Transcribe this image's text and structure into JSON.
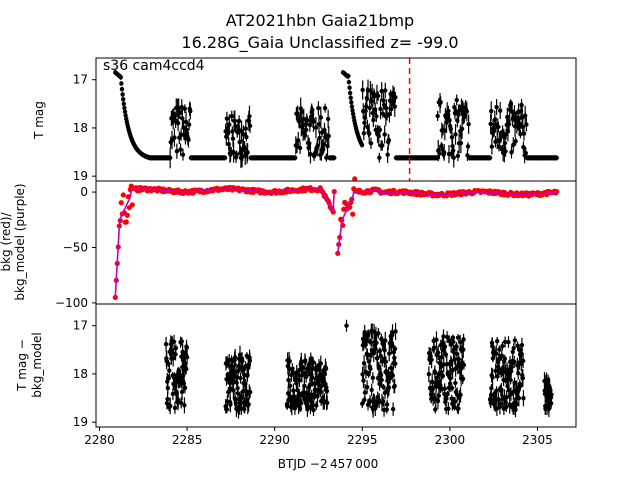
{
  "chart_data": [
    {
      "type": "scatter",
      "title": "AT2021hbn  Gaia21bmp",
      "subtitle": "16.28G_Gaia Unclassified z= -99.0",
      "annotation": "s36 cam4ccd4",
      "ylabel": "T mag",
      "ylim": [
        19.1,
        16.55
      ],
      "y_inverted": true,
      "yticks": [
        17,
        18,
        19
      ],
      "xlim": [
        2279.8,
        2307.2
      ],
      "marker_color": "#000000",
      "vertical_marker": {
        "x": 2297.7,
        "color": "#ff0000",
        "style": "dashed"
      },
      "segments": [
        {
          "x_start": 2280.9,
          "x_end": 2293.4,
          "shape": "flux-T",
          "bursts": [
            [
              2284.0,
              2285.2,
              17.3
            ],
            [
              2287.2,
              2288.6,
              17.6
            ],
            [
              2291.2,
              2293.1,
              17.4
            ]
          ]
        },
        {
          "x_start": 2293.9,
          "x_end": 2306.1,
          "shape": "flux-T",
          "bursts": [
            [
              2295.0,
              2296.9,
              16.9
            ],
            [
              2299.3,
              2301.1,
              17.2
            ],
            [
              2302.3,
              2304.4,
              17.3
            ]
          ]
        }
      ]
    },
    {
      "type": "scatter",
      "ylabel": "bkg (red)/\nbkg_model (purple)",
      "ylim": [
        -101,
        10
      ],
      "yticks": [
        0,
        -50,
        -100
      ],
      "xlim": [
        2279.8,
        2307.2
      ],
      "series": [
        {
          "role": "bkg",
          "color": "#ff0000"
        },
        {
          "role": "bkg_model",
          "color": "#c000c0"
        }
      ],
      "dips": [
        {
          "x": 2280.95,
          "min": -95
        },
        {
          "x": 2293.6,
          "min": -55
        }
      ]
    },
    {
      "type": "scatter",
      "ylabel": "T mag −\nbkg_model",
      "xlabel": "BTJD −2 457 000",
      "ylim": [
        19.1,
        16.55
      ],
      "y_inverted": true,
      "yticks": [
        17,
        18,
        19
      ],
      "xlim": [
        2279.8,
        2307.2
      ],
      "xticks": [
        2280,
        2285,
        2290,
        2295,
        2300,
        2305
      ],
      "marker_color": "#000000",
      "segments": [
        {
          "x_start": 2280.9,
          "x_end": 2293.4,
          "bursts": [
            [
              2283.8,
              2285.0,
              17.3
            ],
            [
              2287.2,
              2288.6,
              17.6
            ],
            [
              2290.7,
              2293.0,
              17.7
            ]
          ]
        },
        {
          "x_start": 2293.9,
          "x_end": 2306.1,
          "bursts": [
            [
              2295.0,
              2296.9,
              17.1
            ],
            [
              2298.8,
              2300.8,
              17.2
            ],
            [
              2302.3,
              2304.2,
              17.3
            ],
            [
              2305.4,
              2305.8,
              18.1
            ]
          ]
        }
      ],
      "extra_points": [
        [
          2294.1,
          17.0
        ]
      ]
    }
  ]
}
